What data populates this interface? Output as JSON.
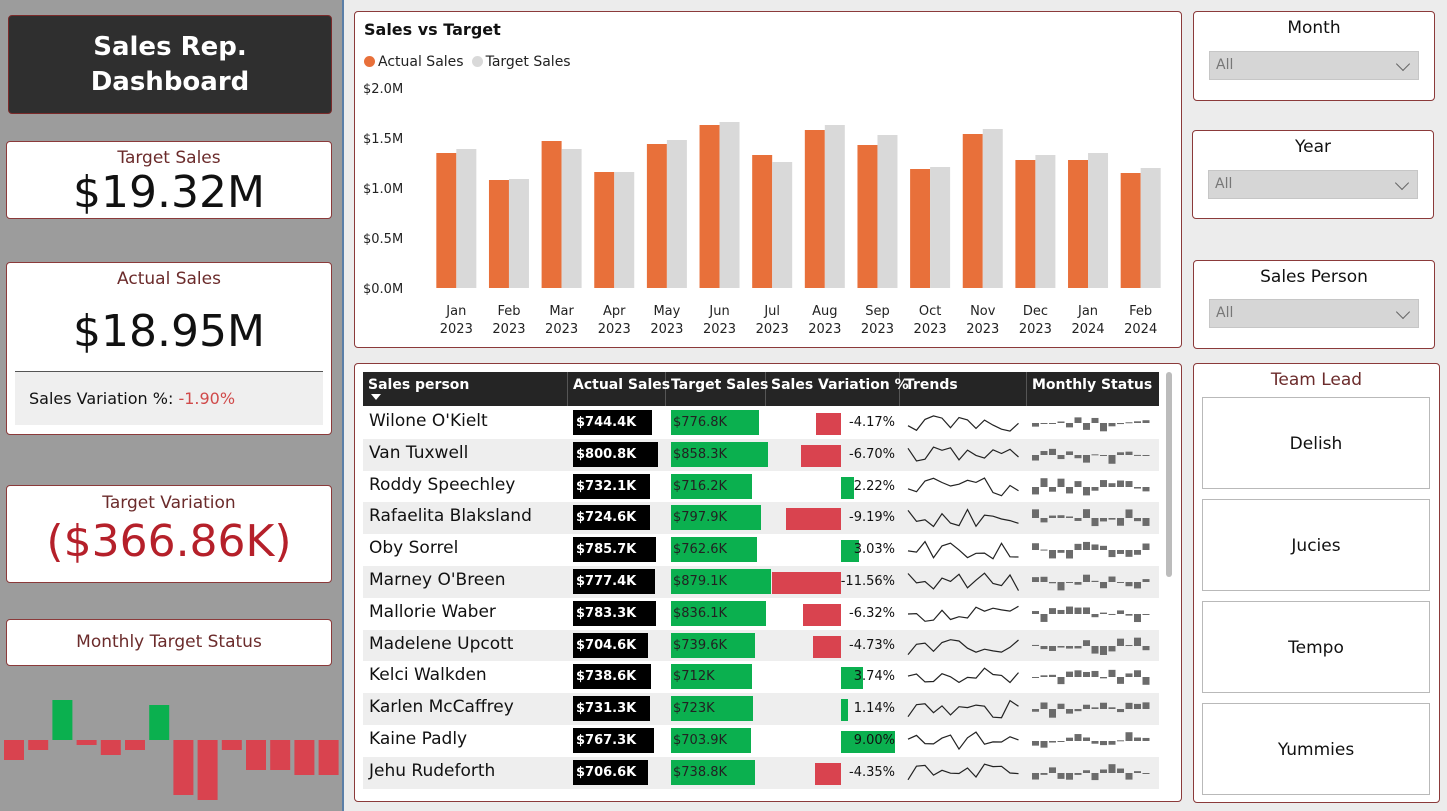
{
  "dashboard": {
    "title_line1": "Sales Rep.",
    "title_line2": "Dashboard"
  },
  "kpis": {
    "target_sales": {
      "label": "Target Sales",
      "value": "$19.32M"
    },
    "actual_sales": {
      "label": "Actual Sales",
      "value": "$18.95M",
      "variation_label": "Sales Variation %:",
      "variation_value": "-1.90%"
    },
    "target_variation": {
      "label": "Target Variation",
      "value": "($366.86K)"
    },
    "monthly_target_status": {
      "label": "Monthly Target Status"
    }
  },
  "monthly_status": [
    -20,
    -10,
    40,
    -5,
    -15,
    -10,
    35,
    -55,
    -75,
    -10,
    -30,
    -30,
    -35,
    -35
  ],
  "sales_chart": {
    "title": "Sales vs Target",
    "legend": [
      {
        "name": "Actual Sales",
        "color": "#e8703a"
      },
      {
        "name": "Target Sales",
        "color": "#d9d9d9"
      }
    ],
    "y_ticks": [
      "$2.0M",
      "$1.5M",
      "$1.0M",
      "$0.5M",
      "$0.0M"
    ]
  },
  "chart_data": {
    "type": "bar",
    "title": "Sales vs Target",
    "categories": [
      "Jan 2023",
      "Feb 2023",
      "Mar 2023",
      "Apr 2023",
      "May 2023",
      "Jun 2023",
      "Jul 2023",
      "Aug 2023",
      "Sep 2023",
      "Oct 2023",
      "Nov 2023",
      "Dec 2023",
      "Jan 2024",
      "Feb 2024"
    ],
    "category_lines": [
      [
        "Jan",
        "2023"
      ],
      [
        "Feb",
        "2023"
      ],
      [
        "Mar",
        "2023"
      ],
      [
        "Apr",
        "2023"
      ],
      [
        "May",
        "2023"
      ],
      [
        "Jun",
        "2023"
      ],
      [
        "Jul",
        "2023"
      ],
      [
        "Aug",
        "2023"
      ],
      [
        "Sep",
        "2023"
      ],
      [
        "Oct",
        "2023"
      ],
      [
        "Nov",
        "2023"
      ],
      [
        "Dec",
        "2023"
      ],
      [
        "Jan",
        "2024"
      ],
      [
        "Feb",
        "2024"
      ]
    ],
    "series": [
      {
        "name": "Actual Sales",
        "color": "#e8703a",
        "values": [
          1.35,
          1.08,
          1.47,
          1.16,
          1.44,
          1.63,
          1.33,
          1.58,
          1.43,
          1.19,
          1.54,
          1.28,
          1.28,
          1.15
        ]
      },
      {
        "name": "Target Sales",
        "color": "#d9d9d9",
        "values": [
          1.39,
          1.09,
          1.39,
          1.16,
          1.48,
          1.66,
          1.26,
          1.63,
          1.53,
          1.21,
          1.59,
          1.33,
          1.35,
          1.2
        ]
      }
    ],
    "ylim": [
      0,
      2.0
    ],
    "y_unit": "$M",
    "legend_position": "top-left",
    "grid": false
  },
  "table": {
    "headers": [
      "Sales person",
      "Actual Sales",
      "Target Sales",
      "Sales Variation %",
      "Trends",
      "Monthly Status"
    ],
    "rows": [
      {
        "name": "Wilone O'Kielt",
        "actual": "$744.4K",
        "actual_v": 744.4,
        "target": "$776.8K",
        "target_v": 776.8,
        "variation": "-4.17%",
        "variation_v": -4.17
      },
      {
        "name": "Van Tuxwell",
        "actual": "$800.8K",
        "actual_v": 800.8,
        "target": "$858.3K",
        "target_v": 858.3,
        "variation": "-6.70%",
        "variation_v": -6.7
      },
      {
        "name": "Roddy Speechley",
        "actual": "$732.1K",
        "actual_v": 732.1,
        "target": "$716.2K",
        "target_v": 716.2,
        "variation": "2.22%",
        "variation_v": 2.22
      },
      {
        "name": "Rafaelita Blaksland",
        "actual": "$724.6K",
        "actual_v": 724.6,
        "target": "$797.9K",
        "target_v": 797.9,
        "variation": "-9.19%",
        "variation_v": -9.19
      },
      {
        "name": "Oby Sorrel",
        "actual": "$785.7K",
        "actual_v": 785.7,
        "target": "$762.6K",
        "target_v": 762.6,
        "variation": "3.03%",
        "variation_v": 3.03
      },
      {
        "name": "Marney O'Breen",
        "actual": "$777.4K",
        "actual_v": 777.4,
        "target": "$879.1K",
        "target_v": 879.1,
        "variation": "-11.56%",
        "variation_v": -11.56
      },
      {
        "name": "Mallorie Waber",
        "actual": "$783.3K",
        "actual_v": 783.3,
        "target": "$836.1K",
        "target_v": 836.1,
        "variation": "-6.32%",
        "variation_v": -6.32
      },
      {
        "name": "Madelene Upcott",
        "actual": "$704.6K",
        "actual_v": 704.6,
        "target": "$739.6K",
        "target_v": 739.6,
        "variation": "-4.73%",
        "variation_v": -4.73
      },
      {
        "name": "Kelci Walkden",
        "actual": "$738.6K",
        "actual_v": 738.6,
        "target": "$712K",
        "target_v": 712.0,
        "variation": "3.74%",
        "variation_v": 3.74
      },
      {
        "name": "Karlen McCaffrey",
        "actual": "$731.3K",
        "actual_v": 731.3,
        "target": "$723K",
        "target_v": 723.0,
        "variation": "1.14%",
        "variation_v": 1.14
      },
      {
        "name": "Kaine Padly",
        "actual": "$767.3K",
        "actual_v": 767.3,
        "target": "$703.9K",
        "target_v": 703.9,
        "variation": "9.00%",
        "variation_v": 9.0
      },
      {
        "name": "Jehu Rudeforth",
        "actual": "$706.6K",
        "actual_v": 706.6,
        "target": "$738.8K",
        "target_v": 738.8,
        "variation": "-4.35%",
        "variation_v": -4.35
      }
    ]
  },
  "slicers": {
    "month": {
      "label": "Month",
      "value": "All"
    },
    "year": {
      "label": "Year",
      "value": "All"
    },
    "sales_person": {
      "label": "Sales Person",
      "value": "All"
    }
  },
  "team_lead": {
    "label": "Team Lead",
    "options": [
      "Delish",
      "Jucies",
      "Tempo",
      "Yummies"
    ]
  },
  "colors": {
    "actual": "#e8703a",
    "target": "#d9d9d9",
    "positive": "#0bb04f",
    "negative": "#d9434f",
    "accent_border": "#8b3a3a"
  }
}
